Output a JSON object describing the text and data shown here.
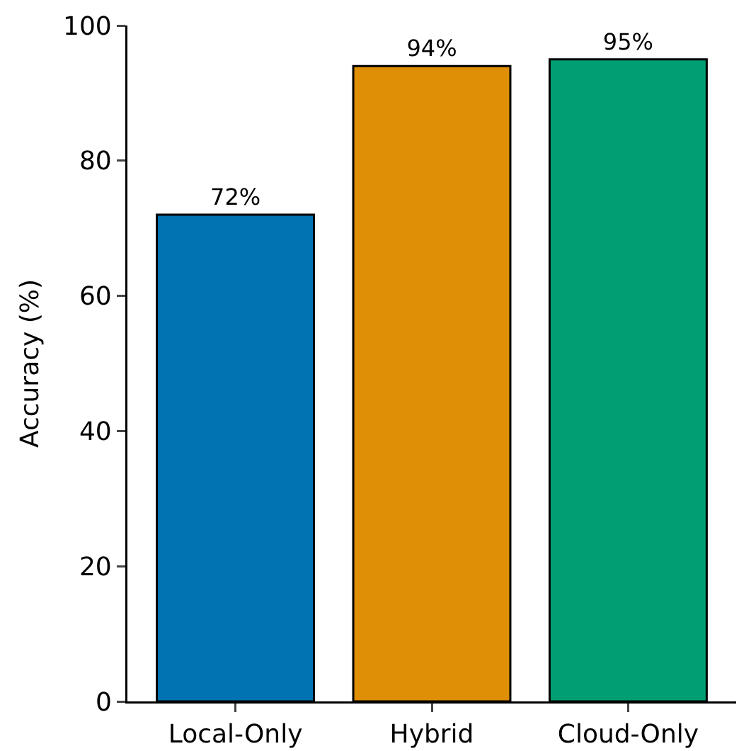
{
  "chart_data": {
    "type": "bar",
    "ylabel": "Accuracy (%)",
    "categories": [
      "Local-Only",
      "Hybrid",
      "Cloud-Only"
    ],
    "values": [
      72,
      94,
      95
    ],
    "value_labels": [
      "72%",
      "94%",
      "95%"
    ],
    "colors": [
      "#0173b2",
      "#de8f05",
      "#029e73"
    ],
    "ylim": [
      0,
      100
    ],
    "yticks": [
      0,
      20,
      40,
      60,
      80,
      100
    ],
    "grid": false
  }
}
